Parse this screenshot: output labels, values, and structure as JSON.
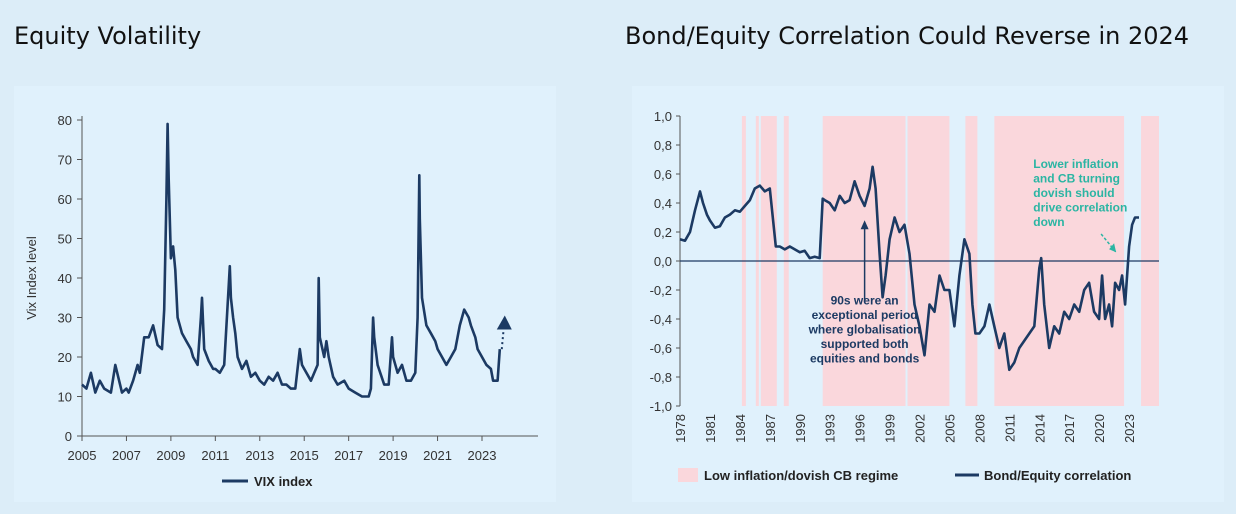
{
  "left_title": "Equity Volatility",
  "right_title": "Bond/Equity Correlation Could Reverse in 2024",
  "colors": {
    "line": "#1c3a63",
    "regime": "#fad7dc",
    "note_dark": "#1c3a63",
    "note_teal": "#2bb5a3",
    "zero": "#1c3a63"
  },
  "chart_data": [
    {
      "type": "line",
      "title": "Equity Volatility",
      "xlabel": "",
      "ylabel": "Vix Index level",
      "xlim": [
        2005,
        2024.8
      ],
      "ylim": [
        0,
        80
      ],
      "x_ticks": [
        "2005",
        "2007",
        "2009",
        "2011",
        "2013",
        "2015",
        "2017",
        "2019",
        "2021",
        "2023"
      ],
      "y_ticks": [
        "80",
        "70",
        "60",
        "50",
        "40",
        "30",
        "20",
        "10",
        "0"
      ],
      "legend": "VIX index",
      "series": [
        {
          "name": "VIX index",
          "x": [
            2005.0,
            2005.2,
            2005.4,
            2005.6,
            2005.8,
            2006.0,
            2006.3,
            2006.5,
            2006.8,
            2007.0,
            2007.1,
            2007.3,
            2007.5,
            2007.6,
            2007.8,
            2008.0,
            2008.2,
            2008.4,
            2008.6,
            2008.7,
            2008.8,
            2008.85,
            2008.9,
            2009.0,
            2009.1,
            2009.2,
            2009.3,
            2009.5,
            2009.7,
            2009.9,
            2010.0,
            2010.2,
            2010.35,
            2010.4,
            2010.5,
            2010.7,
            2010.9,
            2011.0,
            2011.2,
            2011.4,
            2011.6,
            2011.65,
            2011.7,
            2011.8,
            2011.9,
            2012.0,
            2012.2,
            2012.4,
            2012.6,
            2012.8,
            2013.0,
            2013.2,
            2013.4,
            2013.6,
            2013.8,
            2014.0,
            2014.2,
            2014.4,
            2014.6,
            2014.8,
            2014.9,
            2015.0,
            2015.3,
            2015.6,
            2015.65,
            2015.7,
            2015.9,
            2016.0,
            2016.1,
            2016.3,
            2016.5,
            2016.8,
            2017.0,
            2017.3,
            2017.6,
            2017.9,
            2018.0,
            2018.1,
            2018.15,
            2018.3,
            2018.6,
            2018.8,
            2018.95,
            2019.0,
            2019.2,
            2019.4,
            2019.6,
            2019.8,
            2020.0,
            2020.1,
            2020.18,
            2020.2,
            2020.3,
            2020.5,
            2020.7,
            2020.9,
            2021.0,
            2021.2,
            2021.4,
            2021.6,
            2021.8,
            2022.0,
            2022.1,
            2022.2,
            2022.4,
            2022.5,
            2022.7,
            2022.8,
            2023.0,
            2023.2,
            2023.4,
            2023.5,
            2023.7,
            2023.8
          ],
          "values": [
            13,
            12,
            16,
            11,
            14,
            12,
            11,
            18,
            11,
            12,
            11,
            14,
            18,
            16,
            25,
            25,
            28,
            23,
            22,
            32,
            60,
            79,
            65,
            45,
            48,
            42,
            30,
            26,
            24,
            22,
            20,
            18,
            30,
            35,
            22,
            19,
            17,
            17,
            16,
            18,
            38,
            43,
            35,
            30,
            26,
            20,
            17,
            19,
            15,
            16,
            14,
            13,
            15,
            14,
            16,
            13,
            13,
            12,
            12,
            22,
            18,
            17,
            14,
            18,
            40,
            25,
            20,
            24,
            20,
            15,
            13,
            14,
            12,
            11,
            10,
            10,
            12,
            30,
            25,
            18,
            13,
            13,
            25,
            20,
            16,
            18,
            14,
            14,
            16,
            30,
            66,
            55,
            35,
            28,
            26,
            24,
            22,
            20,
            18,
            20,
            22,
            28,
            30,
            32,
            30,
            28,
            25,
            22,
            20,
            18,
            17,
            14,
            14,
            22
          ]
        }
      ]
    },
    {
      "type": "line",
      "title": "Bond/Equity Correlation Could Reverse in 2024",
      "xlabel": "",
      "ylabel": "",
      "xlim": [
        1978,
        2026
      ],
      "ylim": [
        -1.0,
        1.0
      ],
      "x_ticks": [
        "1978",
        "1981",
        "1984",
        "1987",
        "1990",
        "1993",
        "1996",
        "1999",
        "2002",
        "2005",
        "2008",
        "2011",
        "2014",
        "2017",
        "2020",
        "2023"
      ],
      "y_ticks": [
        "1,0",
        "0,8",
        "0,6",
        "0,4",
        "0,2",
        "0,0",
        "-0,2",
        "-0,4",
        "-0,6",
        "-0,8",
        "-1,0"
      ],
      "shaded_regimes": [
        [
          1984.2,
          1984.6
        ],
        [
          1985.6,
          1985.9
        ],
        [
          1986.1,
          1987.7
        ],
        [
          1988.4,
          1988.9
        ],
        [
          1992.3,
          2000.6
        ],
        [
          2000.8,
          2005.0
        ],
        [
          2006.6,
          2007.8
        ],
        [
          2009.5,
          2022.5
        ],
        [
          2024.2,
          2026.0
        ]
      ],
      "annotations": [
        {
          "text": "90s were an exceptional period where globalisation supported both equities and bonds",
          "x": 1996.5,
          "y": -0.5
        },
        {
          "text": "Lower inflation and CB turning dovish should drive correlation down",
          "x": 2020.0,
          "y": 0.45
        }
      ],
      "legend": [
        "Low inflation/dovish CB regime",
        "Bond/Equity correlation"
      ],
      "series": [
        {
          "name": "Bond/Equity correlation",
          "x": [
            1978.0,
            1978.5,
            1979.0,
            1979.5,
            1980.0,
            1980.3,
            1980.7,
            1981.0,
            1981.5,
            1982.0,
            1982.5,
            1983.0,
            1983.5,
            1984.0,
            1984.5,
            1985.0,
            1985.5,
            1986.0,
            1986.5,
            1987.0,
            1987.3,
            1987.6,
            1988.0,
            1988.5,
            1989.0,
            1989.5,
            1990.0,
            1990.5,
            1991.0,
            1991.5,
            1992.0,
            1992.3,
            1992.5,
            1993.0,
            1993.5,
            1994.0,
            1994.5,
            1995.0,
            1995.5,
            1996.0,
            1996.5,
            1997.0,
            1997.3,
            1997.6,
            1998.0,
            1998.3,
            1998.6,
            1999.0,
            1999.5,
            2000.0,
            2000.5,
            2001.0,
            2001.5,
            2002.0,
            2002.5,
            2003.0,
            2003.5,
            2004.0,
            2004.5,
            2005.0,
            2005.5,
            2006.0,
            2006.5,
            2007.0,
            2007.3,
            2007.6,
            2008.0,
            2008.5,
            2009.0,
            2009.5,
            2010.0,
            2010.5,
            2011.0,
            2011.5,
            2012.0,
            2012.5,
            2013.0,
            2013.5,
            2014.0,
            2014.2,
            2014.5,
            2015.0,
            2015.5,
            2016.0,
            2016.5,
            2017.0,
            2017.5,
            2018.0,
            2018.5,
            2019.0,
            2019.5,
            2020.0,
            2020.3,
            2020.6,
            2021.0,
            2021.3,
            2021.6,
            2022.0,
            2022.3,
            2022.6,
            2023.0,
            2023.3,
            2023.6,
            2024.0
          ],
          "values": [
            0.15,
            0.14,
            0.2,
            0.35,
            0.48,
            0.4,
            0.32,
            0.28,
            0.23,
            0.24,
            0.3,
            0.32,
            0.35,
            0.34,
            0.38,
            0.42,
            0.5,
            0.52,
            0.48,
            0.5,
            0.3,
            0.1,
            0.1,
            0.08,
            0.1,
            0.08,
            0.06,
            0.07,
            0.02,
            0.03,
            0.02,
            0.43,
            0.42,
            0.4,
            0.35,
            0.45,
            0.4,
            0.42,
            0.55,
            0.45,
            0.38,
            0.5,
            0.65,
            0.5,
            0.05,
            -0.25,
            -0.1,
            0.15,
            0.3,
            0.2,
            0.25,
            0.05,
            -0.3,
            -0.45,
            -0.65,
            -0.3,
            -0.35,
            -0.1,
            -0.2,
            -0.2,
            -0.45,
            -0.1,
            0.15,
            0.05,
            -0.3,
            -0.5,
            -0.5,
            -0.45,
            -0.3,
            -0.45,
            -0.6,
            -0.5,
            -0.75,
            -0.7,
            -0.6,
            -0.55,
            -0.5,
            -0.45,
            -0.05,
            0.02,
            -0.3,
            -0.6,
            -0.45,
            -0.5,
            -0.35,
            -0.4,
            -0.3,
            -0.35,
            -0.2,
            -0.15,
            -0.35,
            -0.4,
            -0.1,
            -0.4,
            -0.3,
            -0.45,
            -0.15,
            -0.2,
            -0.1,
            -0.3,
            0.1,
            0.25,
            0.3,
            0.3
          ]
        }
      ]
    }
  ]
}
